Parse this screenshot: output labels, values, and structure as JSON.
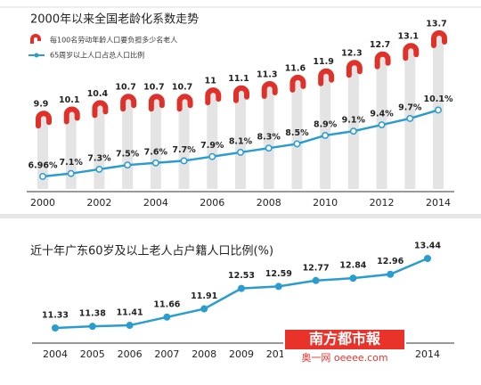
{
  "chart_data": [
    {
      "type": "combo",
      "title": "2000年以来全国老龄化系数走势",
      "categories": [
        "2000",
        null,
        "2002",
        null,
        "2004",
        null,
        "2006",
        null,
        "2008",
        null,
        "2010",
        null,
        "2012",
        null,
        "2014"
      ],
      "series": [
        {
          "name": "每100名劳动年龄人口要负担多少名老人",
          "type": "bar",
          "color": "#e0302a",
          "values": [
            9.9,
            10.1,
            10.4,
            10.7,
            10.7,
            10.7,
            11,
            11.1,
            11.3,
            11.6,
            11.9,
            12.3,
            12.7,
            13.1,
            13.7
          ]
        },
        {
          "name": "65周岁以上人口占总人口比例",
          "type": "line",
          "color": "#2a9ccf",
          "values": [
            6.96,
            7.1,
            7.3,
            7.5,
            7.6,
            7.7,
            7.9,
            8.1,
            8.3,
            8.5,
            8.9,
            9.1,
            9.4,
            9.7,
            10.1
          ],
          "value_labels": [
            "6.96%",
            "7.1%",
            "7.3%",
            "7.5%",
            "7.6%",
            "7.7%",
            "7.9%",
            "8.1%",
            "8.3%",
            "8.5%",
            "8.9%",
            "9.1%",
            "9.4%",
            "9.7%",
            "10.1%"
          ]
        }
      ]
    },
    {
      "type": "line",
      "title": "近十年广东60岁及以上老人占户籍人口比例(%)",
      "categories": [
        "2004",
        "2005",
        "2006",
        "2007",
        "2008",
        "2009",
        "2010",
        null,
        null,
        null,
        "2014"
      ],
      "color": "#2a9ccf",
      "values": [
        11.33,
        11.38,
        11.41,
        11.66,
        11.91,
        12.53,
        12.59,
        12.77,
        12.84,
        12.96,
        13.44
      ]
    }
  ],
  "watermark": {
    "brand": "南方都市報",
    "site": "奥一网 oeeee.com"
  }
}
